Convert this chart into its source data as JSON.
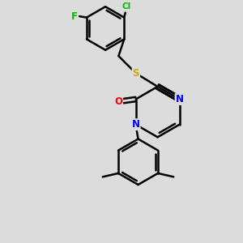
{
  "background_color": "#dcdcdc",
  "bond_color": "#000000",
  "bond_width": 1.8,
  "atom_colors": {
    "F": "#00bb00",
    "Cl": "#00bb00",
    "S": "#ccaa00",
    "N": "#0000ff",
    "O": "#ff0000",
    "C": "#000000"
  }
}
